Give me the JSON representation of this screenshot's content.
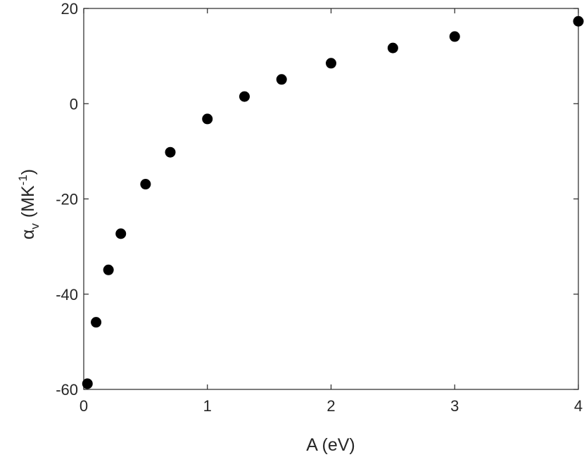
{
  "chart_data": {
    "type": "scatter",
    "title": "",
    "xlabel": "A (eV)",
    "ylabel": {
      "symbol": "α",
      "subscript": "v",
      "unit_open": "(MK",
      "unit_sup": "-1",
      "unit_close": ")"
    },
    "xlim": [
      0,
      4
    ],
    "ylim": [
      -60,
      20
    ],
    "xticks": [
      0,
      1,
      2,
      3,
      4
    ],
    "xtick_labels": [
      "0",
      "1",
      "2",
      "3",
      "4"
    ],
    "yticks": [
      -60,
      -40,
      -20,
      0,
      20
    ],
    "ytick_labels": [
      "-60",
      "-40",
      "-20",
      "0",
      "20"
    ],
    "grid": false,
    "legend": false,
    "marker_color": "#000000",
    "series": [
      {
        "x": [
          0.03,
          0.1,
          0.2,
          0.3,
          0.5,
          0.7,
          1.0,
          1.3,
          1.6,
          2.0,
          2.5,
          3.0,
          4.0
        ],
        "y": [
          -58.8,
          -45.9,
          -34.9,
          -27.3,
          -16.9,
          -10.2,
          -3.2,
          1.5,
          5.1,
          8.5,
          11.7,
          14.1,
          17.3
        ]
      }
    ]
  }
}
